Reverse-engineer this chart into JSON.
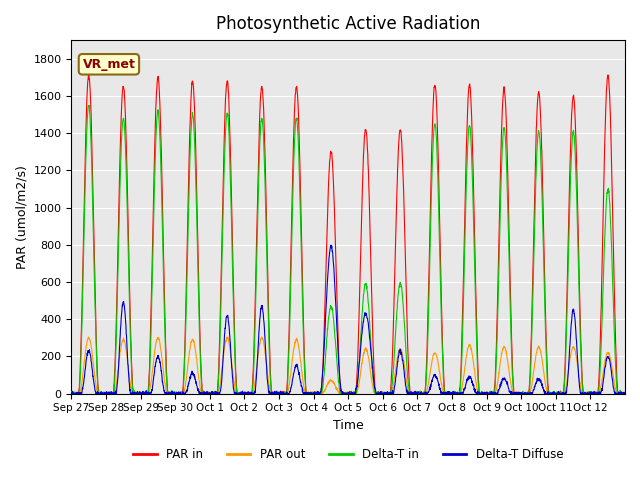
{
  "title": "Photosynthetic Active Radiation",
  "ylabel": "PAR (umol/m2/s)",
  "xlabel": "Time",
  "ylim": [
    0,
    1900
  ],
  "yticks": [
    0,
    200,
    400,
    600,
    800,
    1000,
    1200,
    1400,
    1600,
    1800
  ],
  "label_box": "VR_met",
  "colors": {
    "PAR in": "#ff0000",
    "PAR out": "#ff9900",
    "Delta-T in": "#00cc00",
    "Delta-T Diffuse": "#0000cc"
  },
  "background_color": "#e8e8e8",
  "x_tick_labels": [
    "Sep 27",
    "Sep 28",
    "Sep 29",
    "Sep 30",
    "Oct 1",
    "Oct 2",
    "Oct 3",
    "Oct 4",
    "Oct 5",
    "Oct 6",
    "Oct 7",
    "Oct 8",
    "Oct 9",
    "Oct 10",
    "Oct 11",
    "Oct 12"
  ],
  "n_days": 16,
  "points_per_day": 144,
  "day_peaks_PAR_in": [
    1710,
    1650,
    1700,
    1680,
    1680,
    1650,
    1650,
    1300,
    1420,
    1420,
    1660,
    1660,
    1640,
    1620,
    1600,
    1710
  ],
  "day_peaks_PAR_out": [
    300,
    290,
    300,
    290,
    300,
    300,
    290,
    70,
    240,
    240,
    220,
    260,
    250,
    250,
    250,
    220
  ],
  "day_peaks_DeltaT_in": [
    1550,
    1480,
    1520,
    1500,
    1510,
    1480,
    1480,
    470,
    590,
    590,
    1450,
    1440,
    1430,
    1410,
    1410,
    1100
  ],
  "day_peaks_DeltaT_diffuse": [
    230,
    490,
    200,
    110,
    420,
    470,
    150,
    790,
    430,
    230,
    100,
    90,
    80,
    80,
    450,
    200
  ],
  "cloudy_days": [
    7,
    8
  ]
}
